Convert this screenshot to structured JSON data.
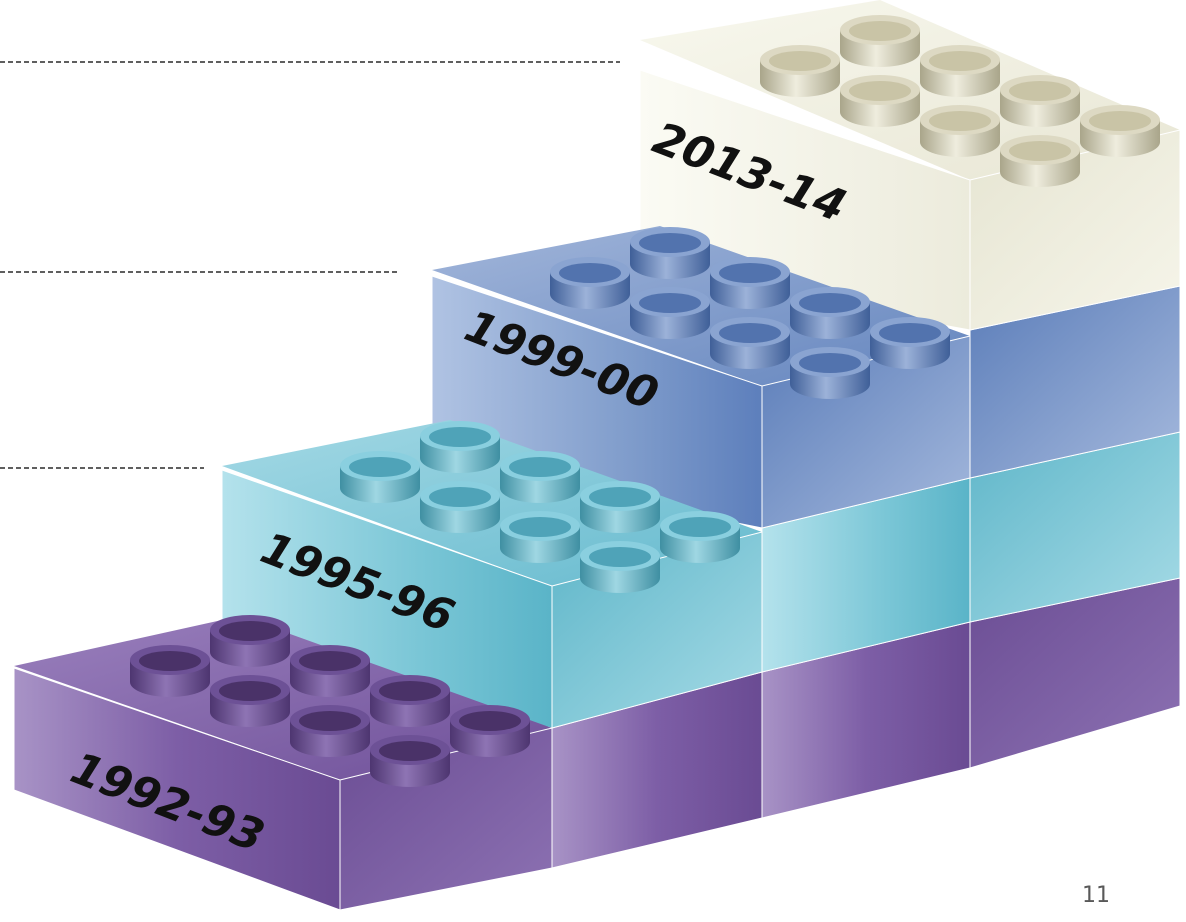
{
  "diagram": {
    "steps": [
      {
        "label": "1992-93",
        "color": "#7d5ea6"
      },
      {
        "label": "1995-96",
        "color": "#7ac6d6"
      },
      {
        "label": "1999-00",
        "color": "#7f9ccb"
      },
      {
        "label": "2013-14",
        "color": "#efeee0"
      }
    ]
  },
  "page_number": "11"
}
